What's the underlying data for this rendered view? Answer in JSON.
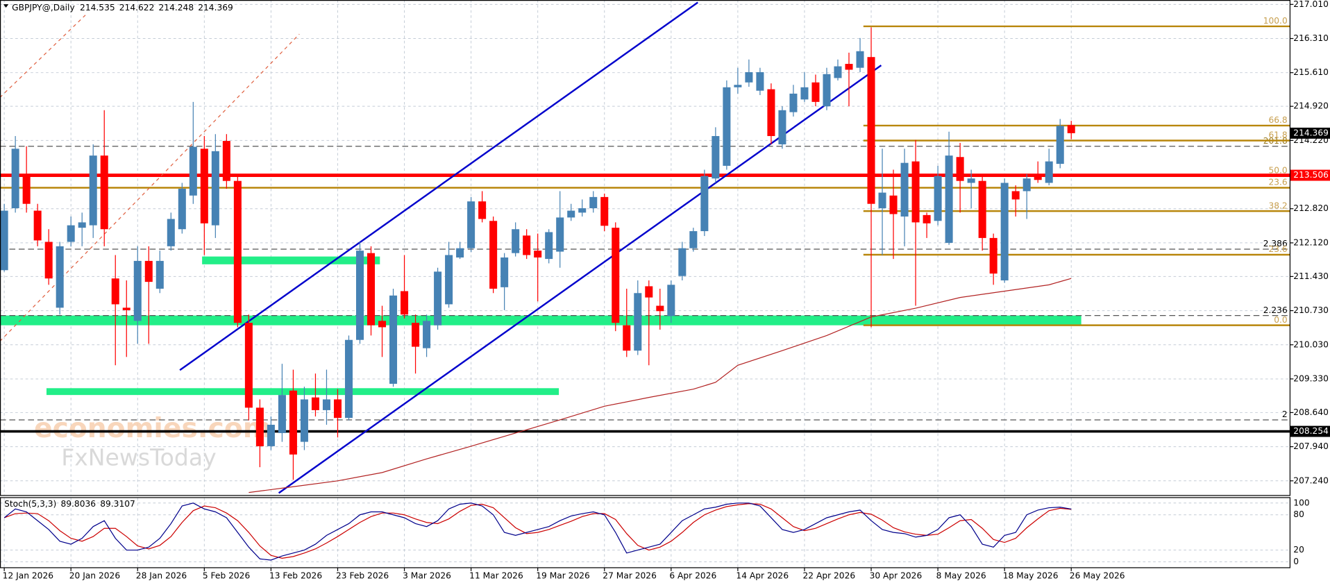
{
  "chart_data": {
    "type": "candlestick",
    "symbol": "GBPJPY@,Daily",
    "categories": [
      "12 Jan 2026",
      null,
      null,
      null,
      null,
      null,
      "20 Jan 2026",
      null,
      null,
      null,
      null,
      null,
      "28 Jan 2026",
      null,
      null,
      null,
      null,
      null,
      "5 Feb 2026",
      null,
      null,
      null,
      null,
      null,
      "13 Feb 2026",
      null,
      null,
      null,
      null,
      null,
      "23 Feb 2026",
      null,
      null,
      null,
      null,
      null,
      "3 Mar 2026",
      null,
      null,
      null,
      null,
      null,
      "11 Mar 2026",
      null,
      null,
      null,
      null,
      null,
      "19 Mar 2026",
      null,
      null,
      null,
      null,
      null,
      "27 Mar 2026",
      null,
      null,
      null,
      null,
      null,
      "6 Apr 2026",
      null,
      null,
      null,
      null,
      null,
      "14 Apr 2026",
      null,
      null,
      null,
      null,
      null,
      "22 Apr 2026",
      null,
      null,
      null,
      null,
      null,
      "30 Apr 2026",
      null,
      null,
      null,
      null,
      null,
      "8 May 2026",
      null,
      null,
      null,
      null,
      null,
      "18 May 2026",
      null,
      null,
      null,
      null,
      null,
      "26 May 2026"
    ],
    "open": [
      211.56,
      212.83,
      213.49,
      212.78,
      212.14,
      210.79,
      212.14,
      212.43,
      212.48,
      213.91,
      211.39,
      210.79,
      210.52,
      211.75,
      211.18,
      212.05,
      212.4,
      213.09,
      214.05,
      212.48,
      214.21,
      213.39,
      210.48,
      208.74,
      207.95,
      208.22,
      209.09,
      208.04,
      208.95,
      208.69,
      208.91,
      208.53,
      210.13,
      211.91,
      210.52,
      209.23,
      211.13,
      210.48,
      209.96,
      210.43,
      210.86,
      211.82,
      212.01,
      212.97,
      212.57,
      211.21,
      211.91,
      212.27,
      211.96,
      211.79,
      211.94,
      212.64,
      212.74,
      212.83,
      213.06,
      212.43,
      210.43,
      209.91,
      211.23,
      210.83,
      210.62,
      211.44,
      212.01,
      212.36,
      213.44,
      213.7,
      215.31,
      215.41,
      215.24,
      215.27,
      214.14,
      214.8,
      215.06,
      215.41,
      214.92,
      215.5,
      215.79,
      215.71,
      215.93,
      212.83,
      213.09,
      212.66,
      213.79,
      212.69,
      212.57,
      212.12,
      213.88,
      213.35,
      213.39,
      212.22,
      211.35,
      213.18,
      213.18,
      213.49,
      213.35,
      213.74,
      214.535
    ],
    "high": [
      212.92,
      214.31,
      214.1,
      212.92,
      212.4,
      212.14,
      212.66,
      212.74,
      214.14,
      214.84,
      211.87,
      211.35,
      212.05,
      212.05,
      211.96,
      212.74,
      213.35,
      215.01,
      214.31,
      214.35,
      214.35,
      213.53,
      210.65,
      208.91,
      208.56,
      209.64,
      209.52,
      209.17,
      209.44,
      209.52,
      209.12,
      210.22,
      212.14,
      212.05,
      210.83,
      211.18,
      211.87,
      210.65,
      210.65,
      211.61,
      212.14,
      212.14,
      213.06,
      213.18,
      212.66,
      211.91,
      212.54,
      212.4,
      212.31,
      212.4,
      213.18,
      212.92,
      213.01,
      213.18,
      213.13,
      212.54,
      211.18,
      211.35,
      211.35,
      211.18,
      211.35,
      212.14,
      212.43,
      213.62,
      214.49,
      215.45,
      215.71,
      215.88,
      215.71,
      215.39,
      214.92,
      215.36,
      215.62,
      215.57,
      215.71,
      215.88,
      216.02,
      216.32,
      216.54,
      214.05,
      213.62,
      214.05,
      214.23,
      212.74,
      213.7,
      214.4,
      214.17,
      213.62,
      213.53,
      212.31,
      213.44,
      213.3,
      213.53,
      213.79,
      214.05,
      214.66,
      214.622
    ],
    "low": [
      211.53,
      212.74,
      212.74,
      212.05,
      211.26,
      210.65,
      212.05,
      212.05,
      212.22,
      212.05,
      209.61,
      209.78,
      210.05,
      210.05,
      211.09,
      211.96,
      212.31,
      212.92,
      211.87,
      212.22,
      213.23,
      210.39,
      208.48,
      207.52,
      207.87,
      208.04,
      207.26,
      207.87,
      208.56,
      208.39,
      208.13,
      208.48,
      210.05,
      210.22,
      209.78,
      209.17,
      210.57,
      209.44,
      209.78,
      210.34,
      210.79,
      211.79,
      211.93,
      212.54,
      211.09,
      210.74,
      211.84,
      211.79,
      210.92,
      211.7,
      211.61,
      212.57,
      212.66,
      212.74,
      212.36,
      210.31,
      209.78,
      209.82,
      209.61,
      210.34,
      210.48,
      211.35,
      211.94,
      212.26,
      213.35,
      213.62,
      215.18,
      215.32,
      215.15,
      214.14,
      214.05,
      214.71,
      215.01,
      214.92,
      214.84,
      215.45,
      214.92,
      215.62,
      210.39,
      211.87,
      211.79,
      212.05,
      210.83,
      212.22,
      212.48,
      212.08,
      212.74,
      212.83,
      211.96,
      211.26,
      211.3,
      212.66,
      212.61,
      213.35,
      213.3,
      213.65,
      214.248
    ],
    "close": [
      212.78,
      214.05,
      212.92,
      212.17,
      211.39,
      212.05,
      212.48,
      212.54,
      213.91,
      212.4,
      210.86,
      210.74,
      211.75,
      211.32,
      211.75,
      212.61,
      213.23,
      214.09,
      212.52,
      214.0,
      213.39,
      210.48,
      208.74,
      207.95,
      208.39,
      209.0,
      207.78,
      208.91,
      208.69,
      208.91,
      208.53,
      210.13,
      211.96,
      210.43,
      210.39,
      211.04,
      210.65,
      209.99,
      210.52,
      211.53,
      211.87,
      212.01,
      212.97,
      212.61,
      211.18,
      211.82,
      212.4,
      211.87,
      211.82,
      212.34,
      212.64,
      212.78,
      212.83,
      213.06,
      212.47,
      210.48,
      209.91,
      211.09,
      211.0,
      210.72,
      211.26,
      212.01,
      212.36,
      213.49,
      214.31,
      215.31,
      215.36,
      215.62,
      215.62,
      214.31,
      214.84,
      215.18,
      215.31,
      215.01,
      215.58,
      215.74,
      215.67,
      216.05,
      212.92,
      213.15,
      212.71,
      213.76,
      212.54,
      212.52,
      213.49,
      213.91,
      213.39,
      213.44,
      212.22,
      211.49,
      213.35,
      213.01,
      213.44,
      213.41,
      213.79,
      214.52,
      214.369
    ],
    "up_color": "#4682b4",
    "down_color": "#ff0000",
    "ylim": [
      206.94,
      217.1
    ],
    "yticks": [
      {
        "value": 217.01,
        "label": "217.010"
      },
      {
        "value": 216.31,
        "label": "216.310"
      },
      {
        "value": 215.61,
        "label": "215.610"
      },
      {
        "value": 214.92,
        "label": "214.920"
      },
      {
        "value": 214.22,
        "label": "214.220"
      },
      {
        "value": 212.82,
        "label": "212.820"
      },
      {
        "value": 212.12,
        "label": "212.120"
      },
      {
        "value": 211.43,
        "label": "211.430"
      },
      {
        "value": 210.73,
        "label": "210.730"
      },
      {
        "value": 210.03,
        "label": "210.030"
      },
      {
        "value": 209.33,
        "label": "209.330"
      },
      {
        "value": 208.64,
        "label": "208.640"
      },
      {
        "value": 207.94,
        "label": "207.940"
      },
      {
        "value": 207.24,
        "label": "207.240"
      }
    ],
    "grid": true,
    "zones": [
      {
        "x": [
          17.8,
          33.8
        ],
        "y": [
          211.68,
          211.84
        ],
        "color": "#22ee88"
      },
      {
        "x": [
          -0.4,
          96.9
        ],
        "y": [
          210.43,
          210.63
        ],
        "color": "#22ee88"
      },
      {
        "x": [
          3.8,
          49.9
        ],
        "y": [
          209.0,
          209.14
        ],
        "color": "#22ee88"
      }
    ],
    "hlines": [
      {
        "value": 213.506,
        "color": "#ff0000",
        "width": 4,
        "box": true
      },
      {
        "value": 208.254,
        "color": "#000000",
        "width": 3,
        "box": true
      },
      {
        "value": 213.25,
        "label": "23.6",
        "color": "#b8860b",
        "width": 2,
        "box": false
      }
    ],
    "dashed_lines": [
      {
        "value": 214.1,
        "label": "201.8",
        "label_color": "#9a7a20"
      },
      {
        "value": 211.99,
        "label": "2.386",
        "label_color": "#000000"
      },
      {
        "value": 210.63,
        "label": "2.236",
        "label_color": "#000000"
      },
      {
        "value": 208.49,
        "label": "2",
        "label_color": "#000000"
      }
    ],
    "fib": {
      "high": 216.56,
      "low": 210.43,
      "x_start": 77.3,
      "color": "#b8860b",
      "levels": [
        {
          "value": 100,
          "label": "100.0"
        },
        66.8,
        61.8,
        {
          "value": 50,
          "label": "50.0"
        },
        38.2,
        23.6,
        {
          "value": 0,
          "label": "0.0"
        }
      ]
    },
    "trendlines": [
      {
        "x": [
          15.8,
          62.4
        ],
        "y": [
          209.51,
          217.05
        ],
        "color": "#0000cc",
        "dash": false
      },
      {
        "x": [
          24.7,
          78.9
        ],
        "y": [
          206.99,
          215.76
        ],
        "color": "#0000cc",
        "dash": false
      },
      {
        "x": [
          -0.4,
          7.3
        ],
        "y": [
          215.1,
          216.79
        ],
        "color": "#e06040",
        "dash": true
      },
      {
        "x": [
          -0.4,
          26.55
        ],
        "y": [
          210.1,
          216.4
        ],
        "color": "#e06040",
        "dash": true
      }
    ],
    "ma": {
      "color": "#b22222",
      "x": [
        22,
        26,
        30,
        34,
        38,
        42,
        46,
        50,
        54,
        58,
        62,
        64,
        66,
        70,
        74,
        78,
        82,
        86,
        90,
        94,
        96
      ],
      "values": [
        207.0,
        207.12,
        207.24,
        207.41,
        207.69,
        207.95,
        208.22,
        208.49,
        208.77,
        208.95,
        209.12,
        209.26,
        209.61,
        209.91,
        210.22,
        210.6,
        210.78,
        211.0,
        211.13,
        211.26,
        211.39
      ]
    },
    "watermarks": [
      "economies.com",
      "FxNewsToday"
    ],
    "stoch": {
      "name": "Stoch(5,3,3)",
      "ylim": [
        -10,
        110
      ],
      "yticks": [
        100,
        80,
        20,
        0
      ],
      "main_color": "#00008b",
      "signal_color": "#cc0000",
      "main": [
        75,
        90,
        85,
        70,
        55,
        35,
        30,
        40,
        60,
        70,
        40,
        20,
        20,
        25,
        40,
        65,
        95,
        100,
        90,
        85,
        75,
        50,
        25,
        5,
        3,
        10,
        15,
        20,
        30,
        45,
        55,
        65,
        80,
        85,
        85,
        80,
        75,
        65,
        60,
        70,
        90,
        98,
        100,
        95,
        80,
        50,
        45,
        50,
        55,
        60,
        70,
        78,
        82,
        85,
        80,
        50,
        15,
        20,
        25,
        30,
        50,
        70,
        80,
        90,
        93,
        98,
        100,
        100,
        95,
        75,
        55,
        50,
        55,
        65,
        75,
        80,
        85,
        88,
        70,
        55,
        50,
        48,
        42,
        45,
        55,
        75,
        80,
        60,
        30,
        25,
        45,
        50,
        80,
        88,
        92,
        93,
        89.8036
      ],
      "signal": [
        75,
        82,
        83,
        82,
        70,
        53,
        40,
        35,
        43,
        57,
        57,
        43,
        27,
        22,
        28,
        43,
        67,
        87,
        95,
        92,
        83,
        70,
        50,
        27,
        11,
        6,
        9,
        15,
        22,
        32,
        43,
        55,
        67,
        77,
        83,
        83,
        80,
        73,
        67,
        65,
        73,
        86,
        96,
        98,
        92,
        75,
        58,
        48,
        50,
        55,
        62,
        69,
        77,
        82,
        82,
        72,
        48,
        28,
        20,
        25,
        35,
        50,
        67,
        80,
        88,
        94,
        97,
        99,
        98,
        90,
        75,
        60,
        53,
        57,
        65,
        73,
        80,
        84,
        81,
        71,
        58,
        51,
        47,
        45,
        47,
        58,
        70,
        72,
        57,
        38,
        33,
        40,
        58,
        73,
        87,
        91,
        89.3107
      ]
    }
  }
}
